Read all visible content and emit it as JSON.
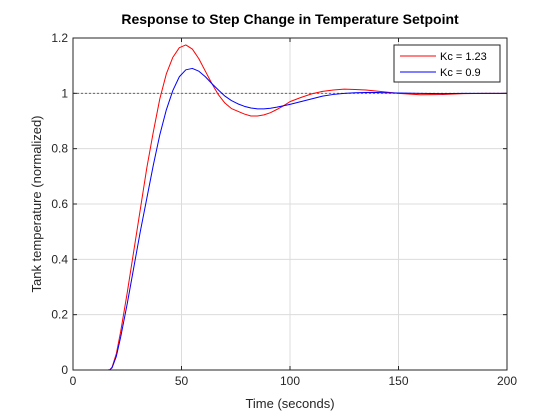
{
  "chart_data": {
    "type": "line",
    "title": "Response to Step Change in Temperature Setpoint",
    "xlabel": "Time (seconds)",
    "ylabel": "Tank temperature (normalized)",
    "xlim": [
      0,
      200
    ],
    "ylim": [
      0,
      1.2
    ],
    "xticks": [
      0,
      50,
      100,
      150,
      200
    ],
    "yticks": [
      0,
      0.2,
      0.4,
      0.6,
      0.8,
      1,
      1.2
    ],
    "xtick_labels": [
      "0",
      "50",
      "100",
      "150",
      "200"
    ],
    "ytick_labels": [
      "0",
      "0.2",
      "0.4",
      "0.6",
      "0.8",
      "1",
      "1.2"
    ],
    "grid": true,
    "legend_position": "top-right",
    "reference_line": {
      "y": 1,
      "style": "dotted",
      "color": "#555555"
    },
    "series": [
      {
        "name": "Kc = 1.23",
        "color": "#ff0000",
        "x": [
          0,
          16,
          17,
          18,
          20,
          22,
          25,
          28,
          31,
          34,
          37,
          40,
          43,
          46,
          49,
          52,
          55,
          58,
          61,
          64,
          67,
          70,
          73,
          76,
          79,
          82,
          85,
          88,
          91,
          94,
          97,
          100,
          105,
          110,
          115,
          120,
          125,
          130,
          135,
          140,
          150,
          160,
          170,
          180,
          190,
          200
        ],
        "y": [
          0,
          0,
          0.001,
          0.01,
          0.06,
          0.14,
          0.28,
          0.43,
          0.58,
          0.73,
          0.86,
          0.98,
          1.07,
          1.13,
          1.165,
          1.175,
          1.16,
          1.125,
          1.08,
          1.035,
          0.995,
          0.965,
          0.945,
          0.935,
          0.925,
          0.918,
          0.918,
          0.922,
          0.93,
          0.942,
          0.955,
          0.97,
          0.985,
          0.998,
          1.007,
          1.012,
          1.015,
          1.014,
          1.012,
          1.008,
          1.0,
          0.995,
          0.996,
          0.999,
          1.0,
          1.0
        ]
      },
      {
        "name": "Kc = 0.9",
        "color": "#0000ff",
        "x": [
          0,
          16,
          17,
          18,
          20,
          22,
          25,
          28,
          31,
          34,
          37,
          40,
          43,
          46,
          49,
          52,
          55,
          58,
          61,
          64,
          67,
          70,
          73,
          76,
          79,
          82,
          85,
          88,
          91,
          94,
          97,
          100,
          105,
          110,
          115,
          120,
          125,
          130,
          135,
          140,
          150,
          160,
          170,
          180,
          190,
          200
        ],
        "y": [
          0,
          0,
          0.001,
          0.008,
          0.05,
          0.12,
          0.24,
          0.37,
          0.5,
          0.62,
          0.74,
          0.85,
          0.94,
          1.01,
          1.06,
          1.085,
          1.09,
          1.08,
          1.06,
          1.035,
          1.012,
          0.99,
          0.974,
          0.962,
          0.953,
          0.947,
          0.944,
          0.944,
          0.946,
          0.95,
          0.955,
          0.96,
          0.97,
          0.98,
          0.99,
          0.996,
          1.0,
          1.002,
          1.003,
          1.003,
          1.001,
          1.0,
          0.999,
          1.0,
          1.0,
          1.0
        ]
      }
    ]
  }
}
